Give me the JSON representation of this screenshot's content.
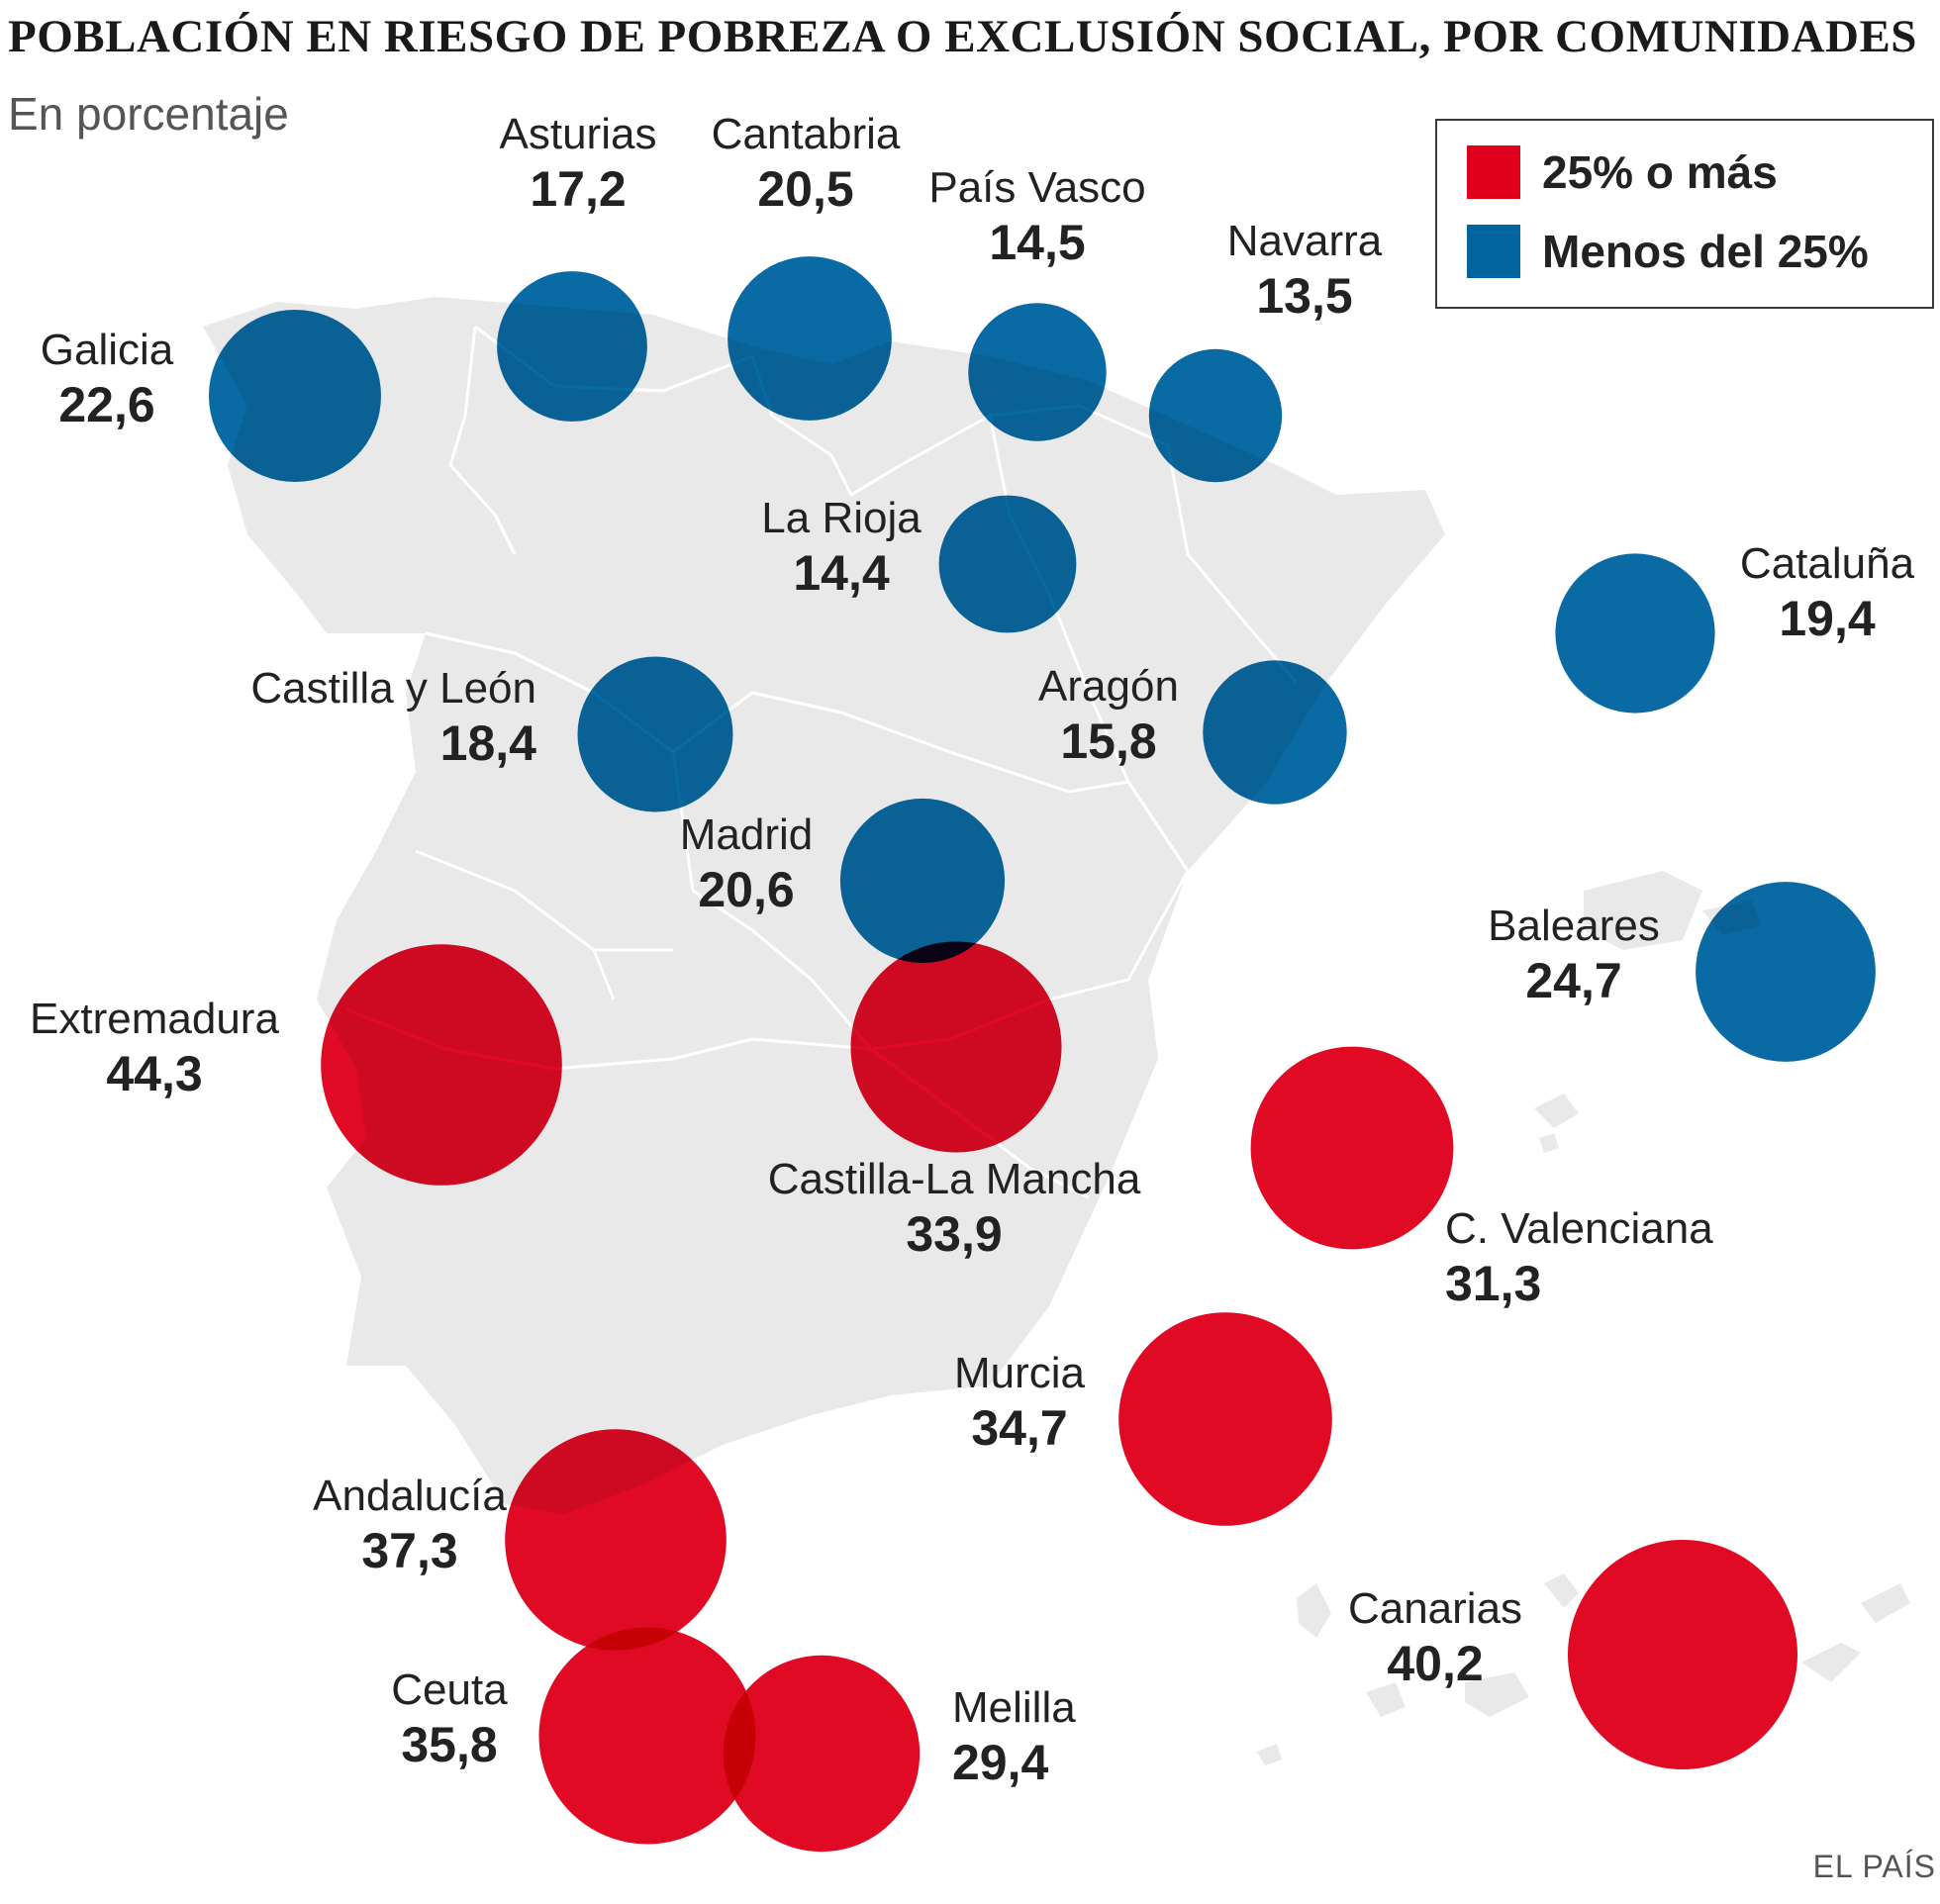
{
  "header": {
    "title": "POBLACIÓN EN RIESGO DE POBREZA O EXCLUSIÓN SOCIAL, POR COMUNIDADES",
    "subtitle": "En porcentaje"
  },
  "legend": {
    "items": [
      {
        "label": "25% o más",
        "color": "#e0001b"
      },
      {
        "label": "Menos del 25%",
        "color": "#00649f"
      }
    ]
  },
  "colors": {
    "high": "#e0001b",
    "low": "#00649f",
    "land": "#e9e9ea",
    "border": "#ffffff"
  },
  "threshold": 25,
  "credit": "EL PAÍS",
  "regions": [
    {
      "name": "Galicia",
      "value": 22.6,
      "value_text": "22,6"
    },
    {
      "name": "Asturias",
      "value": 17.2,
      "value_text": "17,2"
    },
    {
      "name": "Cantabria",
      "value": 20.5,
      "value_text": "20,5"
    },
    {
      "name": "País Vasco",
      "value": 14.5,
      "value_text": "14,5"
    },
    {
      "name": "Navarra",
      "value": 13.5,
      "value_text": "13,5"
    },
    {
      "name": "La Rioja",
      "value": 14.4,
      "value_text": "14,4"
    },
    {
      "name": "Cataluña",
      "value": 19.4,
      "value_text": "19,4"
    },
    {
      "name": "Castilla y León",
      "value": 18.4,
      "value_text": "18,4"
    },
    {
      "name": "Aragón",
      "value": 15.8,
      "value_text": "15,8"
    },
    {
      "name": "Madrid",
      "value": 20.6,
      "value_text": "20,6"
    },
    {
      "name": "Baleares",
      "value": 24.7,
      "value_text": "24,7"
    },
    {
      "name": "Extremadura",
      "value": 44.3,
      "value_text": "44,3"
    },
    {
      "name": "Castilla-La Mancha",
      "value": 33.9,
      "value_text": "33,9"
    },
    {
      "name": "C. Valenciana",
      "value": 31.3,
      "value_text": "31,3"
    },
    {
      "name": "Murcia",
      "value": 34.7,
      "value_text": "34,7"
    },
    {
      "name": "Andalucía",
      "value": 37.3,
      "value_text": "37,3"
    },
    {
      "name": "Canarias",
      "value": 40.2,
      "value_text": "40,2"
    },
    {
      "name": "Ceuta",
      "value": 35.8,
      "value_text": "35,8"
    },
    {
      "name": "Melilla",
      "value": 29.4,
      "value_text": "29,4"
    }
  ]
}
